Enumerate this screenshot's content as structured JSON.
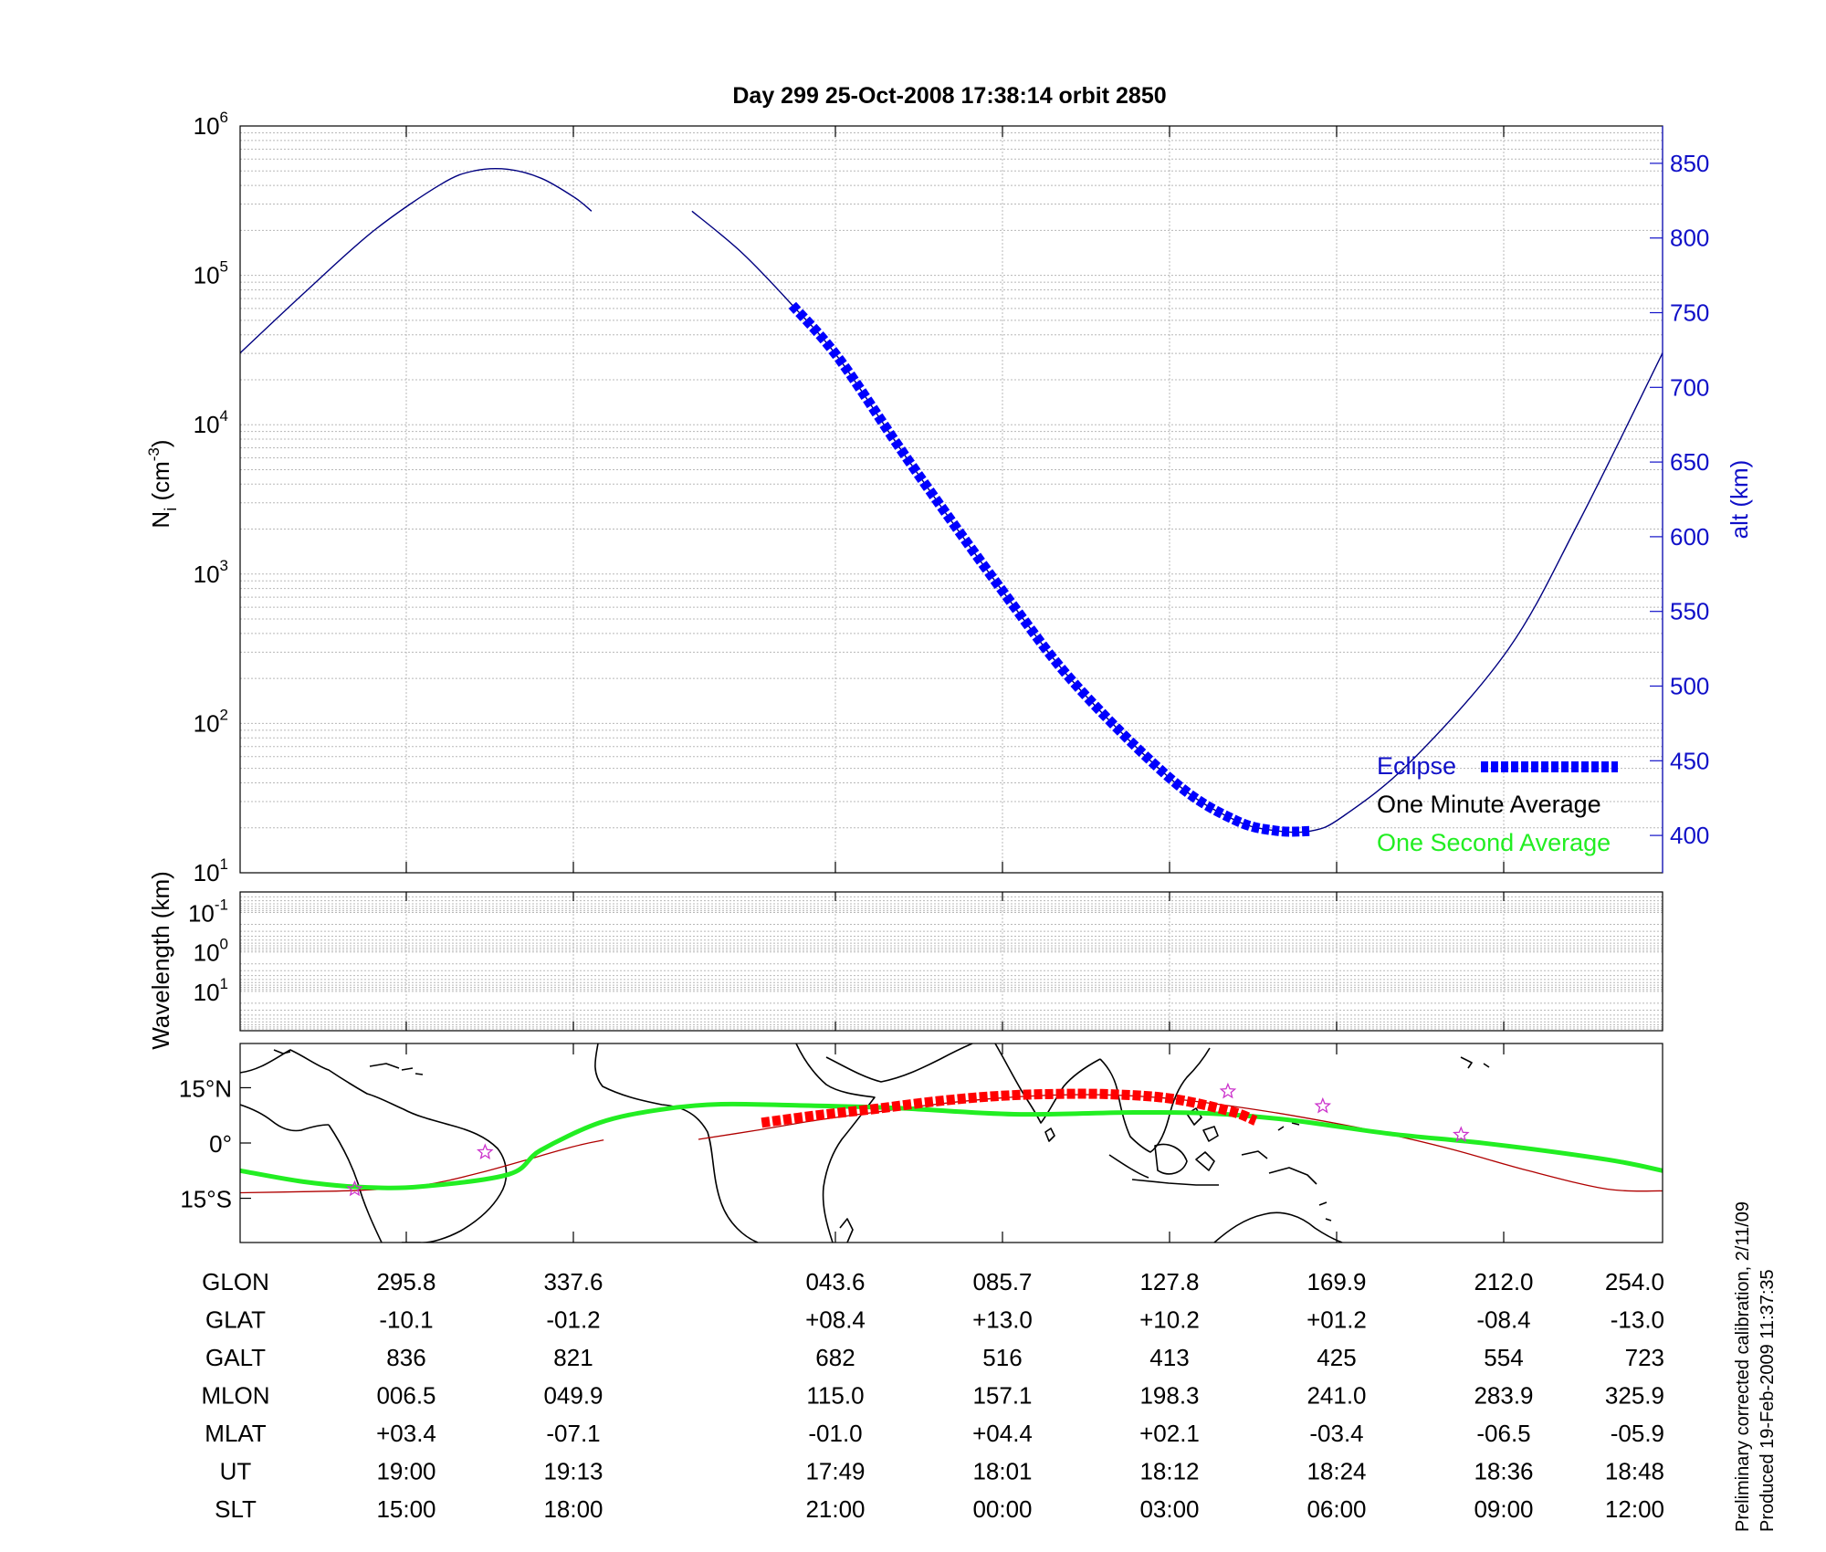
{
  "title": "Day 299  25-Oct-2008 17:38:14   orbit 2850",
  "colors": {
    "alt_axis": "#1010c8",
    "altitude_line": "#000080",
    "eclipse": "#0000ff",
    "one_minute": "#000000",
    "one_second": "#22ee22",
    "footprint_line": "#b00000",
    "footprint_eclipse": "#ff0000",
    "star": "#cc33cc",
    "grid": "#b8b8b8",
    "coast": "#000000"
  },
  "chart_data": [
    {
      "id": "density",
      "type": "line",
      "title": "Day 299  25-Oct-2008 17:38:14   orbit 2850",
      "ylabel": "N_i (cm^-3)",
      "ylabel_main": "N",
      "ylabel_sub": "i",
      "ylabel_rest": " (cm",
      "ylabel_sup": "-3",
      "ylabel_end": ")",
      "yscale": "log",
      "ylim": [
        10,
        1000000
      ],
      "yticks": [
        {
          "base": "10",
          "exp": "1"
        },
        {
          "base": "10",
          "exp": "2"
        },
        {
          "base": "10",
          "exp": "3"
        },
        {
          "base": "10",
          "exp": "4"
        },
        {
          "base": "10",
          "exp": "5"
        },
        {
          "base": "10",
          "exp": "6"
        }
      ],
      "y2label": "alt (km)",
      "y2lim": [
        375,
        875
      ],
      "y2ticks": [
        "400",
        "450",
        "500",
        "550",
        "600",
        "650",
        "700",
        "750",
        "800",
        "850"
      ],
      "y2tick_values": [
        400,
        450,
        500,
        550,
        600,
        650,
        700,
        750,
        800,
        850
      ],
      "xlim": [
        -1,
        7.5
      ],
      "xticks": [
        0,
        1,
        2.58,
        3.58,
        4.58,
        5.58,
        6.58,
        7.58
      ],
      "grid": true,
      "legend": {
        "placement": "lower-right",
        "entries": [
          {
            "label": "Eclipse",
            "style": "eclipse"
          },
          {
            "label": "One Minute Average",
            "style": "one_minute"
          },
          {
            "label": "One Second Average",
            "style": "one_second"
          }
        ]
      },
      "series": [
        {
          "name": "alt (km)",
          "axis": "right",
          "segments": [
            {
              "x": [
                -1,
                -0.6,
                -0.2,
                0.2,
                0.4,
                0.6,
                0.8,
                1.0,
                1.1
              ],
              "y": [
                723,
                765,
                805,
                836,
                845,
                846,
                840,
                827,
                818
              ]
            },
            {
              "x": [
                1.7,
                2.0,
                2.3,
                2.58,
                3.0,
                3.58,
                4.0,
                4.58,
                4.95,
                5.2,
                5.4,
                5.58,
                6.0,
                6.58,
                7.0,
                7.5
              ],
              "y": [
                818,
                790,
                755,
                719,
                650,
                560,
                500,
                436,
                410,
                403,
                403,
                412,
                450,
                525,
                610,
                723
              ]
            }
          ]
        },
        {
          "name": "Eclipse",
          "axis": "right",
          "x": [
            2.3,
            2.58,
            3.0,
            3.58,
            4.0,
            4.58,
            4.95,
            5.2,
            5.4
          ],
          "y": [
            755,
            719,
            650,
            560,
            500,
            436,
            410,
            403,
            403
          ]
        }
      ]
    },
    {
      "id": "wavelength",
      "type": "line",
      "ylabel": "Wavelength (km)",
      "yscale": "log",
      "ylim": [
        100,
        0.03
      ],
      "yticks": [
        {
          "base": "10",
          "exp": "-1"
        },
        {
          "base": "10",
          "exp": "0"
        },
        {
          "base": "10",
          "exp": "1"
        }
      ],
      "grid": true,
      "series": []
    },
    {
      "id": "map",
      "type": "line",
      "ylim": [
        -27,
        27
      ],
      "yticks": [
        "15°N",
        "0°",
        "15°S"
      ],
      "ytick_values": [
        15,
        0,
        -15
      ],
      "xlim": [
        254,
        614
      ],
      "series": [
        {
          "name": "One Second Average",
          "x": [
            254,
            270,
            285,
            300,
            322,
            330,
            345,
            360,
            375,
            395,
            420,
            450,
            480,
            500,
            520,
            545,
            570,
            600,
            614
          ],
          "y": [
            -7.5,
            -10.5,
            -12,
            -11.8,
            -8.5,
            -2,
            5.5,
            9,
            10.5,
            10.2,
            9.5,
            7.8,
            8.3,
            8.0,
            6.2,
            2.5,
            -0.2,
            -4.5,
            -7.5
          ]
        },
        {
          "name": "footprint",
          "segments": [
            {
              "x": [
                254,
                270,
                285,
                300,
                315,
                337.6,
                346
              ],
              "y": [
                -13.5,
                -13.2,
                -12.8,
                -11.5,
                -8.0,
                -1.2,
                0.8
              ]
            },
            {
              "x": [
                370,
                385,
                400,
                415,
                430,
                445,
                460,
                475,
                490,
                505,
                520,
                540,
                560,
                580,
                600,
                614
              ],
              "y": [
                1.0,
                3.5,
                6.2,
                8.4,
                10.5,
                12.1,
                13.0,
                13.0,
                12.0,
                10.0,
                7.5,
                3.5,
                -1.5,
                -7.5,
                -12.5,
                -13.0
              ]
            }
          ]
        },
        {
          "name": "Eclipse",
          "x": [
            386,
            400,
            415,
            430,
            445,
            460,
            475,
            490,
            505,
            511
          ],
          "y": [
            5.5,
            7.5,
            9.3,
            11.3,
            12.7,
            13.3,
            13.2,
            12.0,
            8.5,
            6.0
          ]
        }
      ],
      "stars": [
        {
          "lon": 283,
          "lat": -12.5
        },
        {
          "lon": 316,
          "lat": -2.5
        },
        {
          "lon": 504,
          "lat": 14
        },
        {
          "lon": 528,
          "lat": 10
        },
        {
          "lon": 563,
          "lat": 2.2
        }
      ]
    }
  ],
  "table": {
    "rows": [
      {
        "label": "GLON",
        "values": [
          "295.8",
          "337.6",
          "043.6",
          "085.7",
          "127.8",
          "169.9",
          "212.0",
          "254.0"
        ]
      },
      {
        "label": "GLAT",
        "values": [
          "-10.1",
          "-01.2",
          "+08.4",
          "+13.0",
          "+10.2",
          "+01.2",
          "-08.4",
          "-13.0"
        ]
      },
      {
        "label": "GALT",
        "values": [
          "836",
          "821",
          "682",
          "516",
          "413",
          "425",
          "554",
          "723"
        ]
      },
      {
        "label": "MLON",
        "values": [
          "006.5",
          "049.9",
          "115.0",
          "157.1",
          "198.3",
          "241.0",
          "283.9",
          "325.9"
        ]
      },
      {
        "label": "MLAT",
        "values": [
          "+03.4",
          "-07.1",
          "-01.0",
          "+04.4",
          "+02.1",
          "-03.4",
          "-06.5",
          "-05.9"
        ]
      },
      {
        "label": "UT",
        "values": [
          "19:00",
          "19:13",
          "17:49",
          "18:01",
          "18:12",
          "18:24",
          "18:36",
          "18:48"
        ]
      },
      {
        "label": "SLT",
        "values": [
          "15:00",
          "18:00",
          "21:00",
          "00:00",
          "03:00",
          "06:00",
          "09:00",
          "12:00"
        ]
      }
    ]
  },
  "footnote": {
    "line1": "Preliminary corrected calibration, 2/11/09",
    "line2": "Produced 19-Feb-2009 11:37:35"
  }
}
